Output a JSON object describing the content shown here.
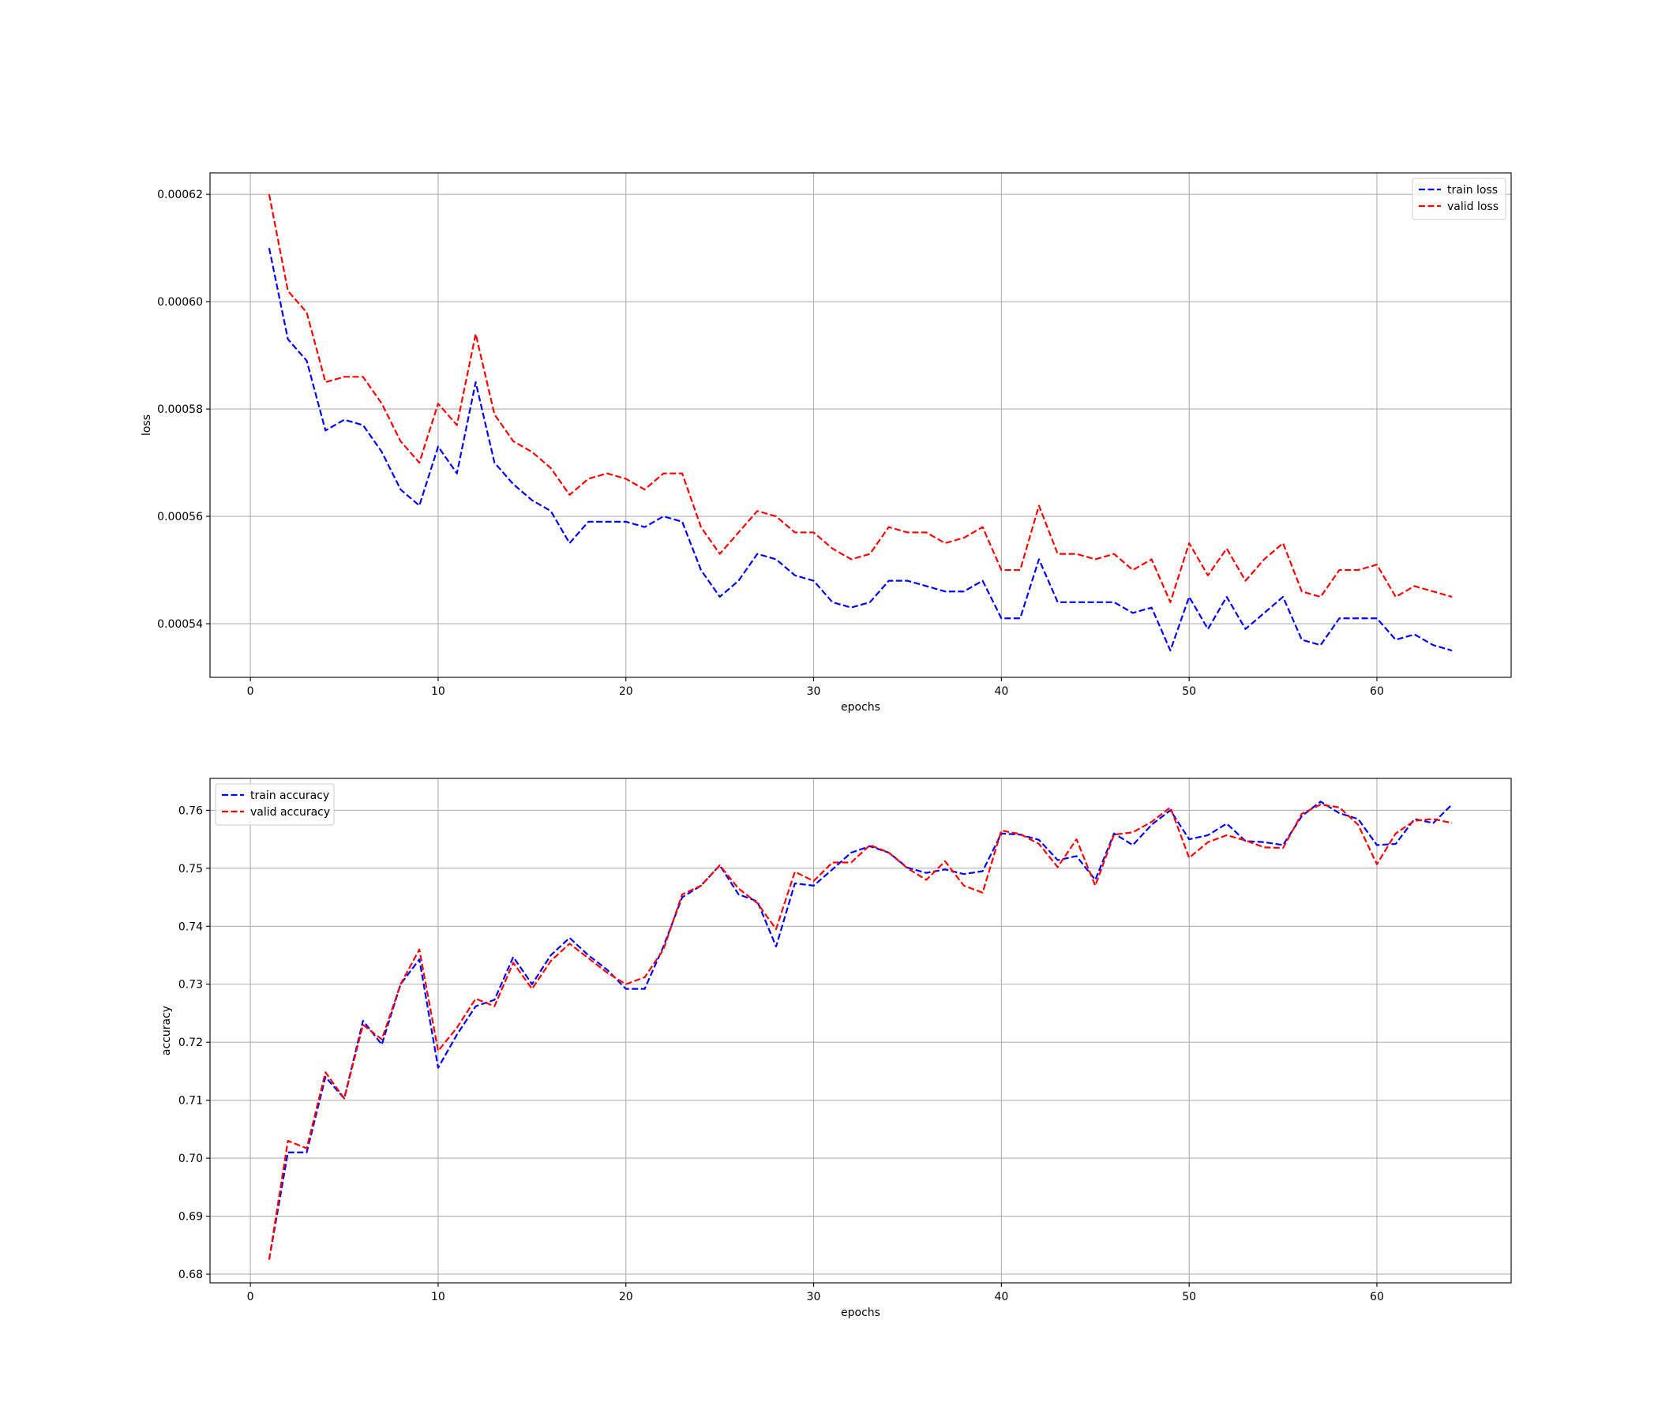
{
  "chart_data": [
    {
      "type": "line",
      "xlabel": "epochs",
      "ylabel": "loss",
      "xlim": [
        -2.15,
        67.15
      ],
      "ylim": [
        0.00053,
        0.000624
      ],
      "xticks": [
        0,
        10,
        20,
        30,
        40,
        50,
        60
      ],
      "yticks": [
        0.00054,
        0.00056,
        0.00058,
        0.0006,
        0.00062
      ],
      "ytick_labels": [
        "0.00054",
        "0.00056",
        "0.00058",
        "0.00060",
        "0.00062"
      ],
      "grid": true,
      "legend_position": "top-right",
      "x": [
        1,
        2,
        3,
        4,
        5,
        6,
        7,
        8,
        9,
        10,
        11,
        12,
        13,
        14,
        15,
        16,
        17,
        18,
        19,
        20,
        21,
        22,
        23,
        24,
        25,
        26,
        27,
        28,
        29,
        30,
        31,
        32,
        33,
        34,
        35,
        36,
        37,
        38,
        39,
        40,
        41,
        42,
        43,
        44,
        45,
        46,
        47,
        48,
        49,
        50,
        51,
        52,
        53,
        54,
        55,
        56,
        57,
        58,
        59,
        60,
        61,
        62,
        63,
        64
      ],
      "series": [
        {
          "name": "train loss",
          "color": "#0000ff",
          "values": [
            0.00061,
            0.000593,
            0.000589,
            0.000576,
            0.000578,
            0.000577,
            0.000572,
            0.000565,
            0.000562,
            0.000573,
            0.000568,
            0.000585,
            0.00057,
            0.000566,
            0.000563,
            0.000561,
            0.000555,
            0.000559,
            0.000559,
            0.000559,
            0.000558,
            0.00056,
            0.000559,
            0.00055,
            0.000545,
            0.000548,
            0.000553,
            0.000552,
            0.000549,
            0.000548,
            0.000544,
            0.000543,
            0.000544,
            0.000548,
            0.000548,
            0.000547,
            0.000546,
            0.000546,
            0.000548,
            0.000541,
            0.000541,
            0.000552,
            0.000544,
            0.000544,
            0.000544,
            0.000544,
            0.000542,
            0.000543,
            0.000535,
            0.000545,
            0.000539,
            0.000545,
            0.000539,
            0.000542,
            0.000545,
            0.000537,
            0.000536,
            0.000541,
            0.000541,
            0.000541,
            0.000537,
            0.000538,
            0.000536,
            0.000535
          ]
        },
        {
          "name": "valid loss",
          "color": "#ff0000",
          "values": [
            0.00062,
            0.000602,
            0.000598,
            0.000585,
            0.000586,
            0.000586,
            0.000581,
            0.000574,
            0.00057,
            0.000581,
            0.000577,
            0.000594,
            0.000579,
            0.000574,
            0.000572,
            0.000569,
            0.000564,
            0.000567,
            0.000568,
            0.000567,
            0.000565,
            0.000568,
            0.000568,
            0.000558,
            0.000553,
            0.000557,
            0.000561,
            0.00056,
            0.000557,
            0.000557,
            0.000554,
            0.000552,
            0.000553,
            0.000558,
            0.000557,
            0.000557,
            0.000555,
            0.000556,
            0.000558,
            0.00055,
            0.00055,
            0.000562,
            0.000553,
            0.000553,
            0.000552,
            0.000553,
            0.00055,
            0.000552,
            0.000544,
            0.000555,
            0.000549,
            0.000554,
            0.000548,
            0.000552,
            0.000555,
            0.000546,
            0.000545,
            0.00055,
            0.00055,
            0.000551,
            0.000545,
            0.000547,
            0.000546,
            0.000545
          ]
        }
      ]
    },
    {
      "type": "line",
      "xlabel": "epochs",
      "ylabel": "accuracy",
      "xlim": [
        -2.15,
        67.15
      ],
      "ylim": [
        0.6785,
        0.7655
      ],
      "xticks": [
        0,
        10,
        20,
        30,
        40,
        50,
        60
      ],
      "yticks": [
        0.68,
        0.69,
        0.7,
        0.71,
        0.72,
        0.73,
        0.74,
        0.75,
        0.76
      ],
      "ytick_labels": [
        "0.68",
        "0.69",
        "0.70",
        "0.71",
        "0.72",
        "0.73",
        "0.74",
        "0.75",
        "0.76"
      ],
      "grid": true,
      "legend_position": "top-left",
      "x": [
        1,
        2,
        3,
        4,
        5,
        6,
        7,
        8,
        9,
        10,
        11,
        12,
        13,
        14,
        15,
        16,
        17,
        18,
        19,
        20,
        21,
        22,
        23,
        24,
        25,
        26,
        27,
        28,
        29,
        30,
        31,
        32,
        33,
        34,
        35,
        36,
        37,
        38,
        39,
        40,
        41,
        42,
        43,
        44,
        45,
        46,
        47,
        48,
        49,
        50,
        51,
        52,
        53,
        54,
        55,
        56,
        57,
        58,
        59,
        60,
        61,
        62,
        63,
        64
      ],
      "series": [
        {
          "name": "train accuracy",
          "color": "#0000ff",
          "values": [
            0.6825,
            0.701,
            0.701,
            0.714,
            0.7103,
            0.7237,
            0.7196,
            0.73,
            0.7343,
            0.7156,
            0.7213,
            0.7262,
            0.7273,
            0.7347,
            0.73,
            0.735,
            0.738,
            0.735,
            0.7325,
            0.7292,
            0.7292,
            0.7365,
            0.745,
            0.747,
            0.7505,
            0.7455,
            0.7443,
            0.7365,
            0.7474,
            0.747,
            0.7498,
            0.7527,
            0.7538,
            0.7527,
            0.7501,
            0.7492,
            0.7498,
            0.749,
            0.7495,
            0.756,
            0.7558,
            0.7549,
            0.7514,
            0.7521,
            0.748,
            0.756,
            0.754,
            0.7575,
            0.76,
            0.755,
            0.7557,
            0.7577,
            0.7547,
            0.7545,
            0.754,
            0.759,
            0.7615,
            0.7595,
            0.7585,
            0.754,
            0.7542,
            0.7585,
            0.7578,
            0.761
          ]
        },
        {
          "name": "valid accuracy",
          "color": "#ff0000",
          "values": [
            0.6825,
            0.703,
            0.7017,
            0.7148,
            0.7103,
            0.723,
            0.7205,
            0.73,
            0.736,
            0.7185,
            0.7225,
            0.7275,
            0.7262,
            0.7337,
            0.7292,
            0.734,
            0.737,
            0.7345,
            0.732,
            0.73,
            0.7312,
            0.736,
            0.7455,
            0.747,
            0.7505,
            0.7465,
            0.744,
            0.7395,
            0.7494,
            0.7478,
            0.751,
            0.751,
            0.754,
            0.7527,
            0.75,
            0.748,
            0.7512,
            0.747,
            0.7458,
            0.7565,
            0.7559,
            0.7542,
            0.7502,
            0.755,
            0.747,
            0.7558,
            0.7562,
            0.758,
            0.7605,
            0.7518,
            0.7545,
            0.7557,
            0.7548,
            0.7536,
            0.7535,
            0.7594,
            0.761,
            0.7605,
            0.7575,
            0.7507,
            0.756,
            0.7582,
            0.7585,
            0.7578
          ]
        }
      ]
    }
  ]
}
